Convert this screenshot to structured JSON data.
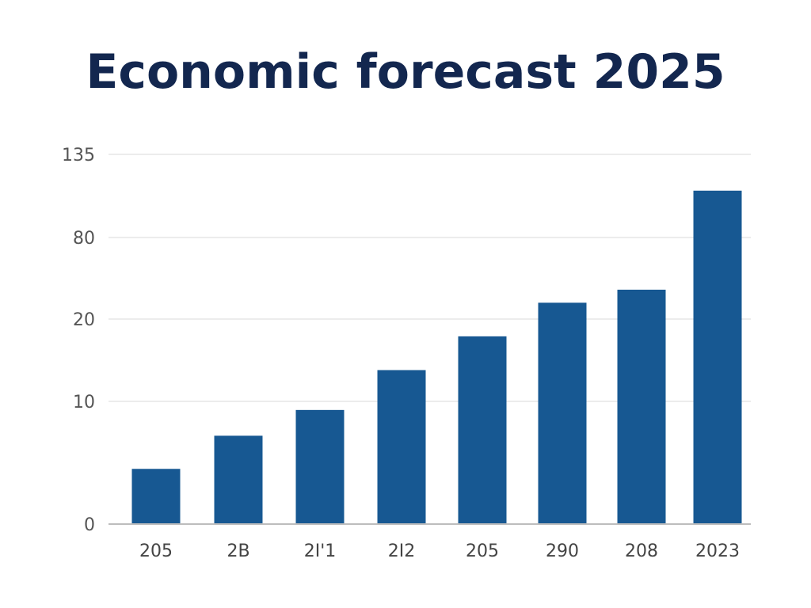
{
  "chart_data": {
    "type": "bar",
    "title": "Economic forecast 2025",
    "xlabel": "",
    "ylabel": "",
    "categories": [
      "205",
      "2B",
      "2I'1",
      "2I2",
      "205",
      "290",
      "208",
      "2023"
    ],
    "values": [
      4.5,
      7.2,
      9.3,
      13.8,
      17.9,
      32,
      41.6,
      111
    ],
    "yticks": [
      0,
      10,
      20,
      80,
      135
    ],
    "ylim": [
      0,
      135
    ],
    "grid": true,
    "legend": "none",
    "bar_color": "#175892",
    "title_color": "#13274f"
  }
}
